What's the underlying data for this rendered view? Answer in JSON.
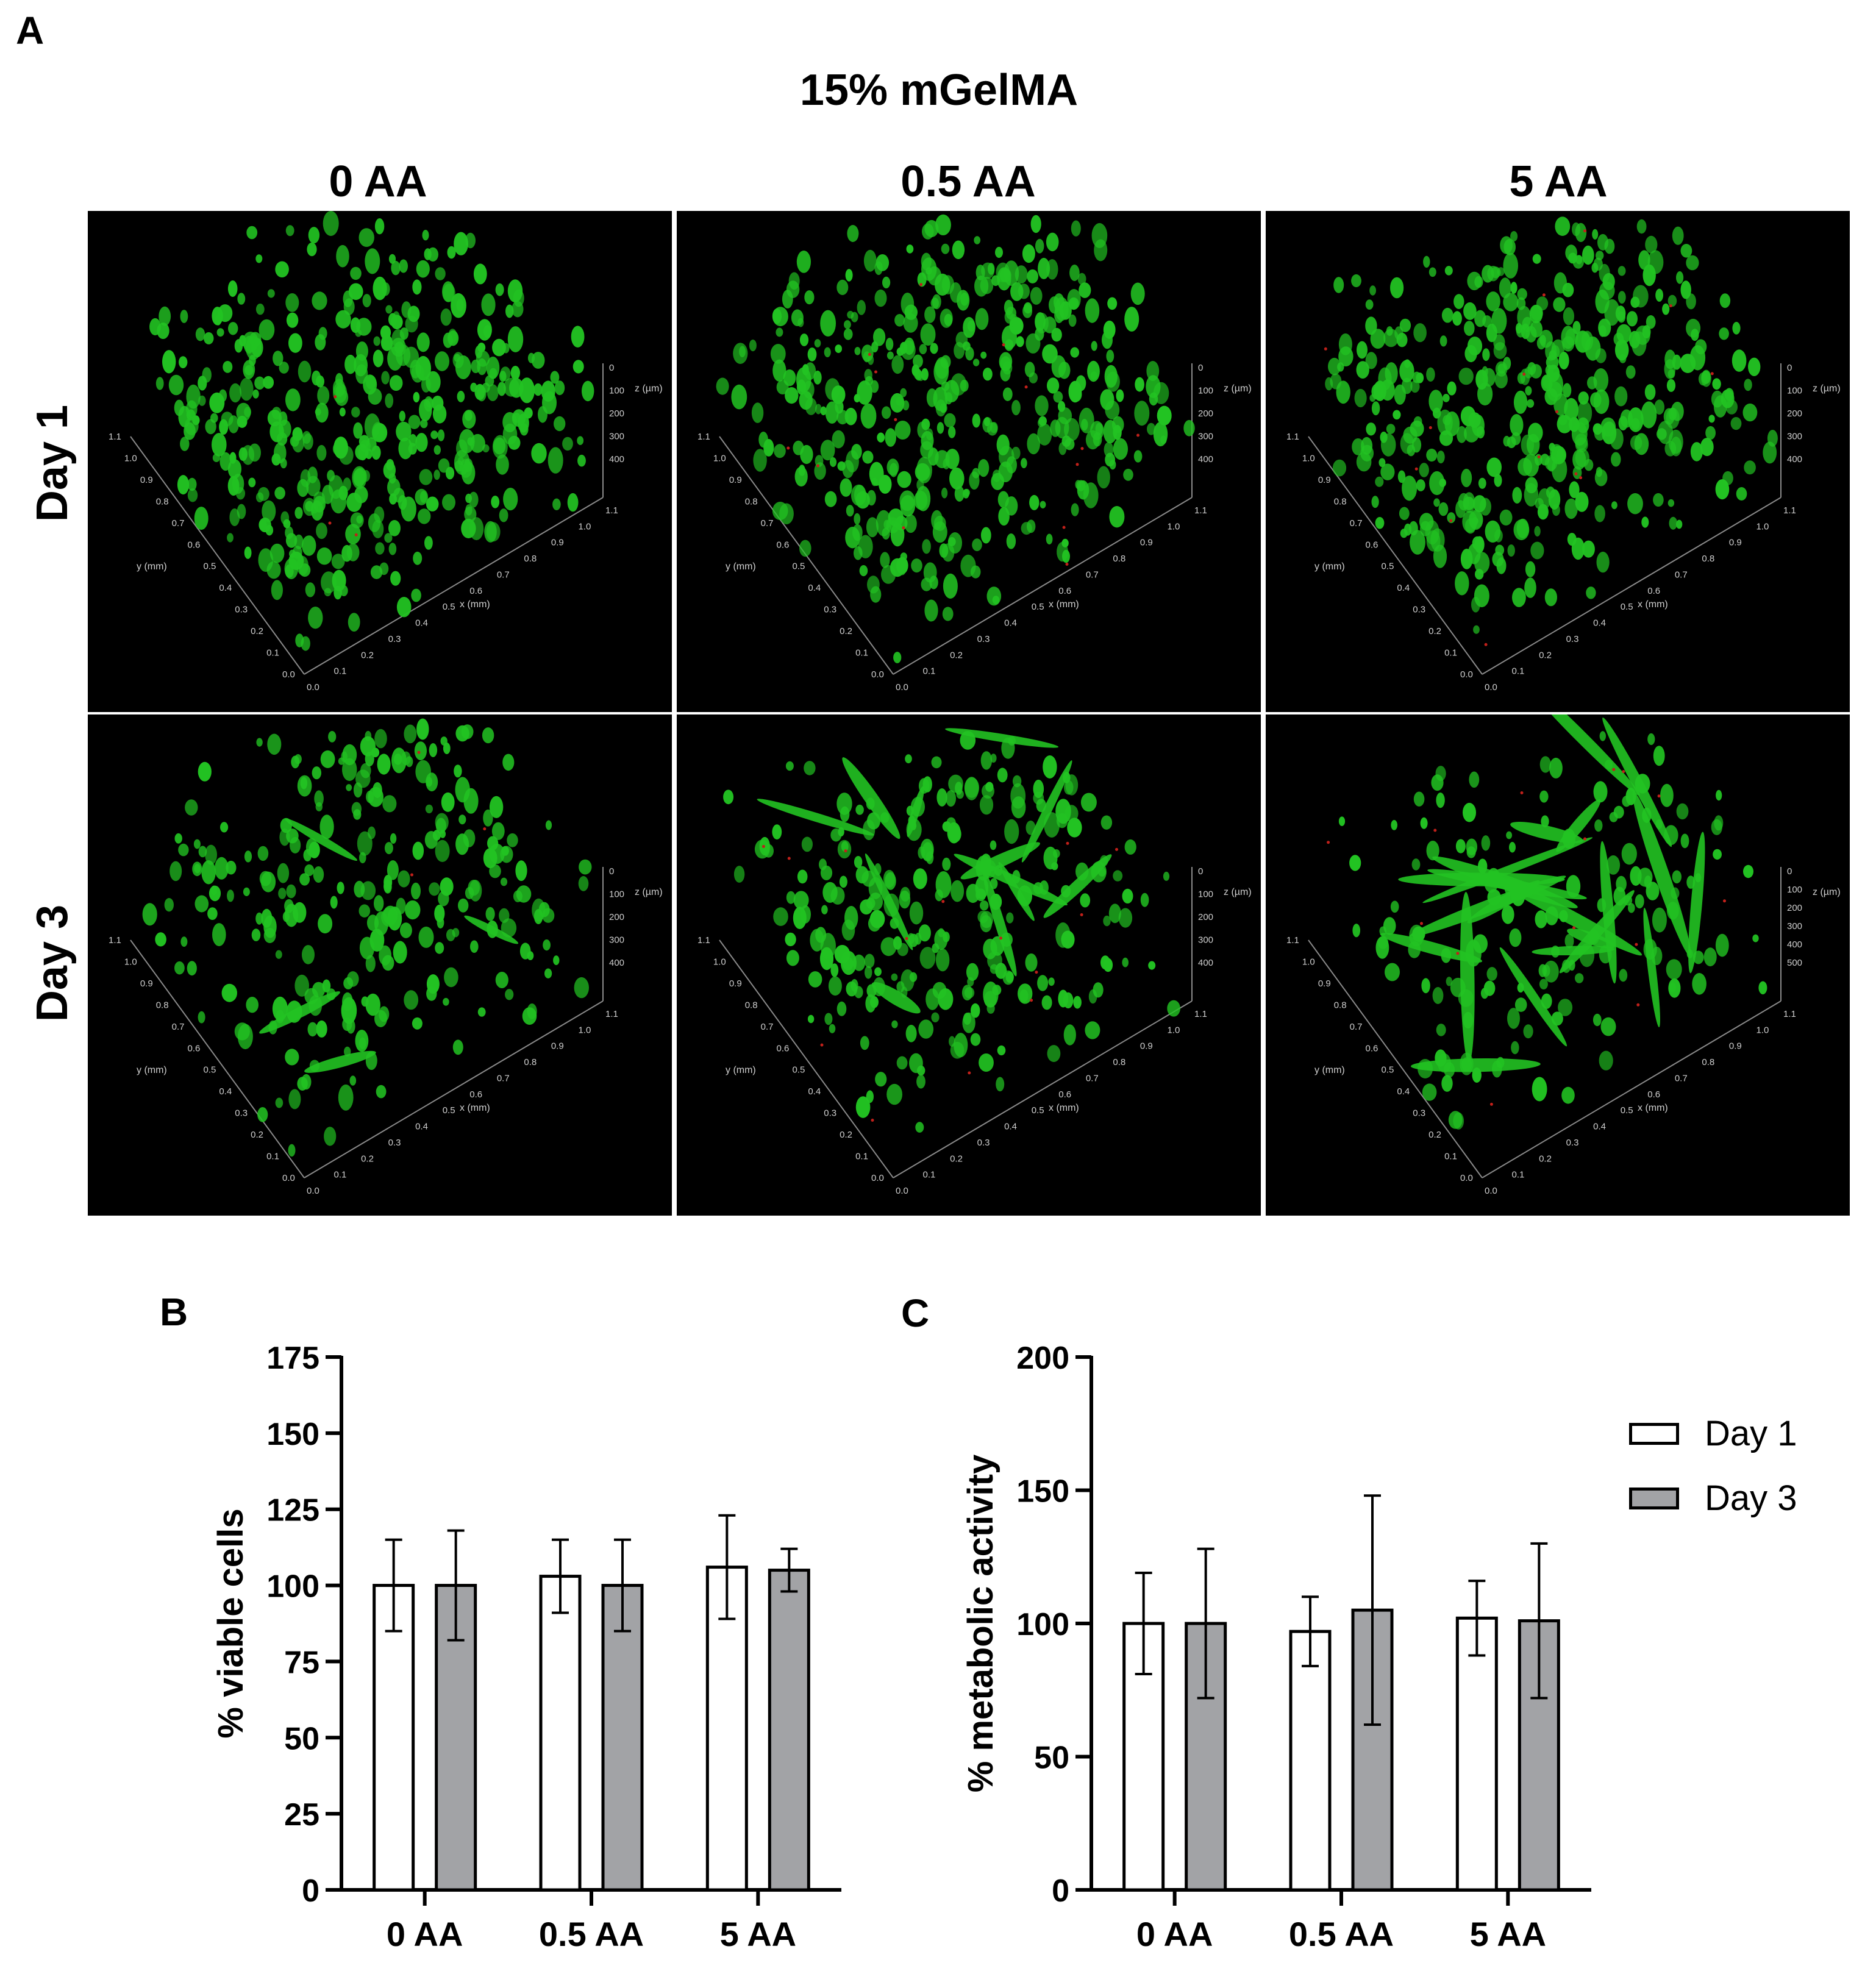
{
  "panels": {
    "a": "A",
    "b": "B",
    "c": "C"
  },
  "figure_title": "15% mGelMA",
  "columns": [
    "0 AA",
    "0.5 AA",
    "5 AA"
  ],
  "rows": [
    "Day 1",
    "Day 3"
  ],
  "micro_axes": {
    "x_label": "x (mm)",
    "y_label": "y (mm)",
    "z_label": "z (µm)",
    "xy_ticks": [
      "0.0",
      "0.1",
      "0.2",
      "0.3",
      "0.4",
      "0.5",
      "0.6",
      "0.7",
      "0.8",
      "0.9",
      "1.0",
      "1.1"
    ],
    "z_ticks": [
      "0",
      "100",
      "200",
      "300",
      "400"
    ],
    "z_ticks_extended": [
      "0",
      "100",
      "200",
      "300",
      "400",
      "500"
    ]
  },
  "colors": {
    "live_cells": "#22c322",
    "dead_cells": "#c0201a",
    "bar_day1": "#ffffff",
    "bar_day3": "#a2a3a6"
  },
  "legend": [
    {
      "label": "Day 1",
      "color": "#ffffff"
    },
    {
      "label": "Day 3",
      "color": "#a2a3a6"
    }
  ],
  "chart_data": [
    {
      "type": "bar",
      "panel": "B",
      "ylabel": "% viable cells",
      "categories": [
        "0 AA",
        "0.5 AA",
        "5 AA"
      ],
      "series": [
        {
          "name": "Day 1",
          "values": [
            100,
            103,
            106
          ],
          "error": [
            15,
            12,
            17
          ]
        },
        {
          "name": "Day 3",
          "values": [
            100,
            100,
            105
          ],
          "error": [
            18,
            15,
            7
          ]
        }
      ],
      "ylim": [
        0,
        175
      ],
      "yticks": [
        0,
        25,
        50,
        75,
        100,
        125,
        150,
        175
      ]
    },
    {
      "type": "bar",
      "panel": "C",
      "ylabel": "% metabolic activity",
      "categories": [
        "0 AA",
        "0.5 AA",
        "5 AA"
      ],
      "series": [
        {
          "name": "Day 1",
          "values": [
            100,
            97,
            102
          ],
          "error": [
            19,
            13,
            14
          ]
        },
        {
          "name": "Day 3",
          "values": [
            100,
            105,
            101
          ],
          "error": [
            28,
            43,
            29
          ]
        }
      ],
      "ylim": [
        0,
        200
      ],
      "yticks": [
        0,
        50,
        100,
        150,
        200
      ],
      "legend": "right"
    }
  ]
}
